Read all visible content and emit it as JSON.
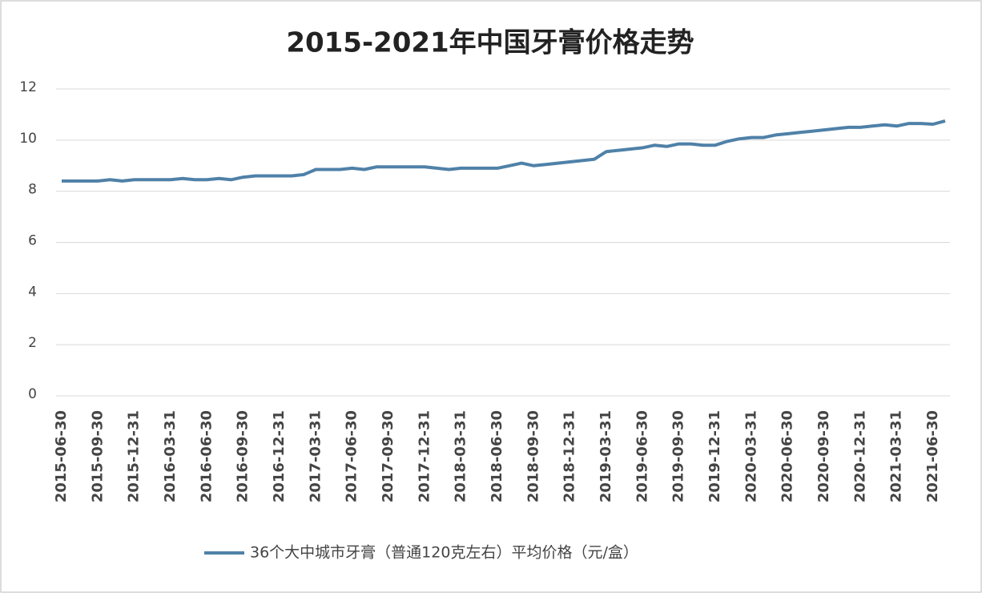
{
  "chart_data": {
    "type": "line",
    "title": "2015-2021年中国牙膏价格走势",
    "categories": [
      "2015-06-30",
      null,
      null,
      "2015-09-30",
      null,
      null,
      "2015-12-31",
      null,
      null,
      "2016-03-31",
      null,
      null,
      "2016-06-30",
      null,
      null,
      "2016-09-30",
      null,
      null,
      "2016-12-31",
      null,
      null,
      "2017-03-31",
      null,
      null,
      "2017-06-30",
      null,
      null,
      "2017-09-30",
      null,
      null,
      "2017-12-31",
      null,
      null,
      "2018-03-31",
      null,
      null,
      "2018-06-30",
      null,
      null,
      "2018-09-30",
      null,
      null,
      "2018-12-31",
      null,
      null,
      "2019-03-31",
      null,
      null,
      "2019-06-30",
      null,
      null,
      "2019-09-30",
      null,
      null,
      "2019-12-31",
      null,
      null,
      "2020-03-31",
      null,
      null,
      "2020-06-30",
      null,
      null,
      "2020-09-30",
      null,
      null,
      "2020-12-31",
      null,
      null,
      "2021-03-31",
      null,
      null,
      "2021-06-30",
      null
    ],
    "series": [
      {
        "name": "36个大中城市牙膏（普通120克左右）平均价格（元/盒）",
        "color": "#4f81a8",
        "values": [
          8.4,
          8.4,
          8.4,
          8.4,
          8.45,
          8.4,
          8.45,
          8.45,
          8.45,
          8.45,
          8.5,
          8.45,
          8.45,
          8.5,
          8.45,
          8.55,
          8.6,
          8.6,
          8.6,
          8.6,
          8.65,
          8.85,
          8.85,
          8.85,
          8.9,
          8.85,
          8.95,
          8.95,
          8.95,
          8.95,
          8.95,
          8.9,
          8.85,
          8.9,
          8.9,
          8.9,
          8.9,
          9.0,
          9.1,
          9.0,
          9.05,
          9.1,
          9.15,
          9.2,
          9.25,
          9.55,
          9.6,
          9.65,
          9.7,
          9.8,
          9.75,
          9.85,
          9.85,
          9.8,
          9.8,
          9.95,
          10.05,
          10.1,
          10.1,
          10.2,
          10.25,
          10.3,
          10.35,
          10.4,
          10.45,
          10.5,
          10.5,
          10.55,
          10.6,
          10.55,
          10.65,
          10.65,
          10.62,
          10.75
        ]
      }
    ],
    "ylim": [
      0,
      12
    ],
    "yticks": [
      0,
      2,
      4,
      6,
      8,
      10,
      12
    ],
    "grid": true,
    "legend": "bottom"
  }
}
